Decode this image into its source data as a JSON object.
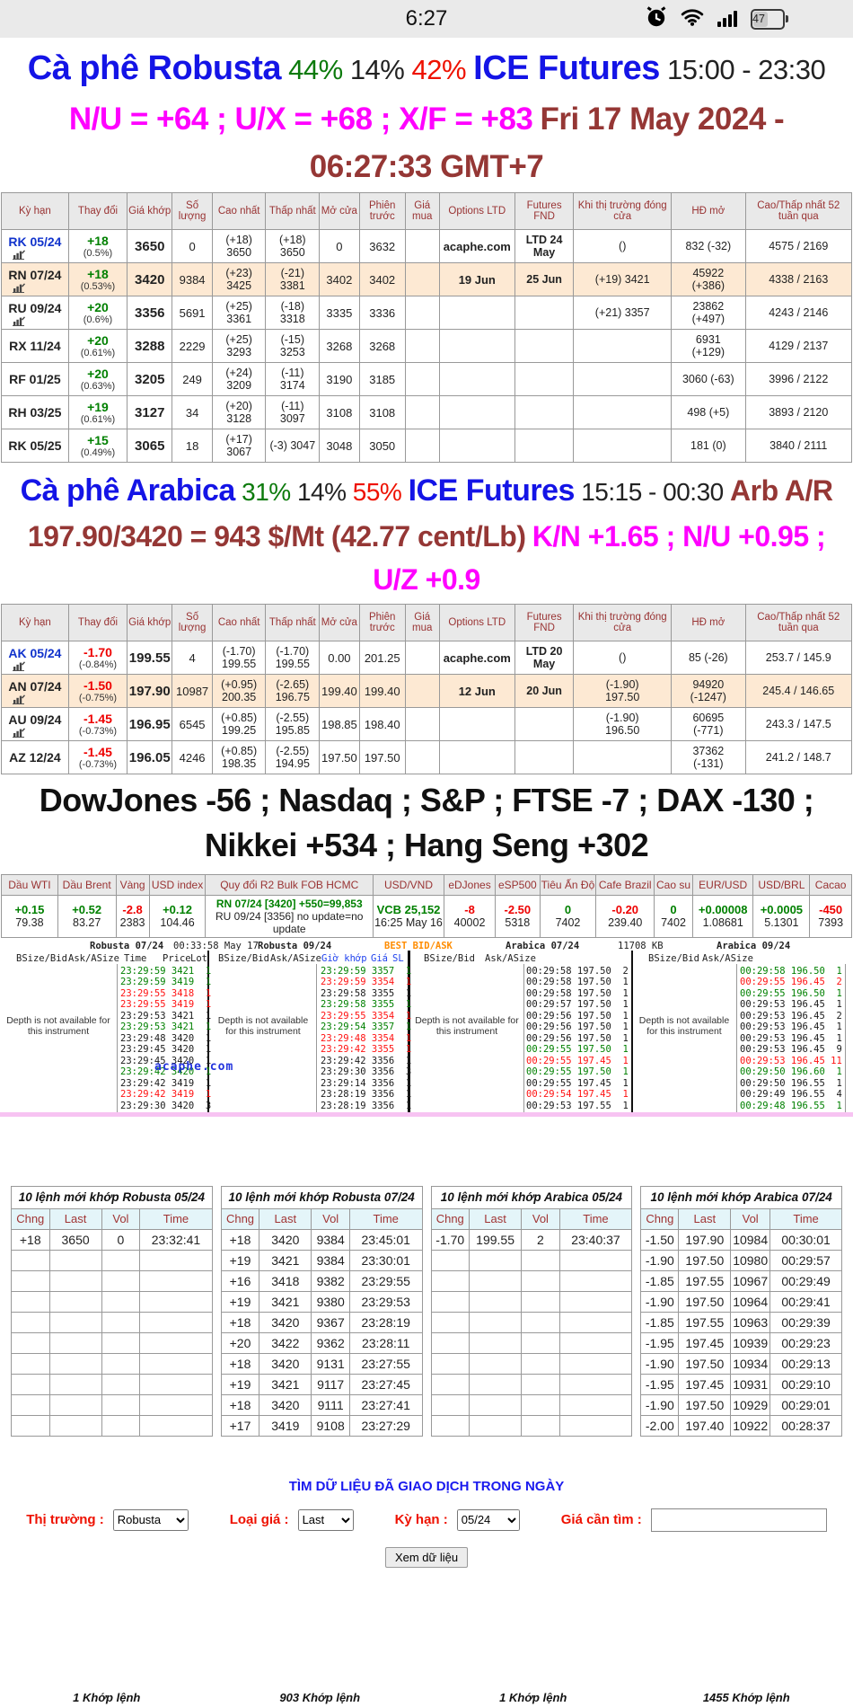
{
  "status_bar": {
    "time": "6:27",
    "battery_percent": "47"
  },
  "robusta_header": {
    "title": "Cà phê Robusta",
    "pct_green": "44%",
    "pct_black": "14%",
    "pct_red": "42%",
    "exchange": "ICE Futures",
    "hours": "15:00 - 23:30",
    "spreads": "N/U = +64 ; U/X = +68 ; X/F = +83",
    "date": "Fri 17 May 2024 - 06:27:33 GMT+7"
  },
  "arabica_header": {
    "title": "Cà phê Arabica",
    "pct_green": "31%",
    "pct_black": "14%",
    "pct_red": "55%",
    "exchange": "ICE Futures",
    "hours": "15:15 - 00:30",
    "arb": "Arb A/R 197.90/3420 = 943 $/Mt (42.77 cent/Lb)",
    "spreads": "K/N +1.65 ; N/U +0.95 ; U/Z +0.9"
  },
  "futures_headers": [
    "Kỳ hạn",
    "Thay đổi",
    "Giá khớp",
    "Số lượng",
    "Cao nhất",
    "Thấp nhất",
    "Mở cửa",
    "Phiên trước",
    "Giá mua",
    "Options LTD",
    "Futures FND",
    "Khi thị trường đóng cửa",
    "HĐ mở",
    "Cao/Thấp nhất 52 tuần qua"
  ],
  "robusta_rows": [
    {
      "sym": "RK 05/24",
      "blue": true,
      "icon": true,
      "chg": "+18",
      "pct": "(0.5%)",
      "last": "3650",
      "vol": "0",
      "high": "(+18)\n3650",
      "low": "(+18)\n3650",
      "open": "0",
      "prev": "3632",
      "buy": "",
      "opt": "acaphe.com",
      "fnd": "LTD 24 May",
      "close": "()",
      "oi": "832 (-32)",
      "yr": "4575 / 2169"
    },
    {
      "sym": "RN 07/24",
      "icon": true,
      "hl": true,
      "chg": "+18",
      "pct": "(0.53%)",
      "last": "3420",
      "vol": "9384",
      "high": "(+23)\n3425",
      "low": "(-21)\n3381",
      "open": "3402",
      "prev": "3402",
      "buy": "",
      "opt": "19 Jun",
      "fnd": "25 Jun",
      "close": "(+19) 3421",
      "oi": "45922\n(+386)",
      "yr": "4338 / 2163"
    },
    {
      "sym": "RU 09/24",
      "icon": true,
      "chg": "+20",
      "pct": "(0.6%)",
      "last": "3356",
      "vol": "5691",
      "high": "(+25)\n3361",
      "low": "(-18)\n3318",
      "open": "3335",
      "prev": "3336",
      "buy": "",
      "opt": "",
      "fnd": "",
      "close": "(+21) 3357",
      "oi": "23862\n(+497)",
      "yr": "4243 / 2146"
    },
    {
      "sym": "RX 11/24",
      "chg": "+20",
      "pct": "(0.61%)",
      "last": "3288",
      "vol": "2229",
      "high": "(+25)\n3293",
      "low": "(-15)\n3253",
      "open": "3268",
      "prev": "3268",
      "buy": "",
      "opt": "",
      "fnd": "",
      "close": "",
      "oi": "6931\n(+129)",
      "yr": "4129 / 2137"
    },
    {
      "sym": "RF 01/25",
      "chg": "+20",
      "pct": "(0.63%)",
      "last": "3205",
      "vol": "249",
      "high": "(+24)\n3209",
      "low": "(-11)\n3174",
      "open": "3190",
      "prev": "3185",
      "buy": "",
      "opt": "",
      "fnd": "",
      "close": "",
      "oi": "3060 (-63)",
      "yr": "3996 / 2122"
    },
    {
      "sym": "RH 03/25",
      "chg": "+19",
      "pct": "(0.61%)",
      "last": "3127",
      "vol": "34",
      "high": "(+20)\n3128",
      "low": "(-11)\n3097",
      "open": "3108",
      "prev": "3108",
      "buy": "",
      "opt": "",
      "fnd": "",
      "close": "",
      "oi": "498 (+5)",
      "yr": "3893 / 2120"
    },
    {
      "sym": "RK 05/25",
      "chg": "+15",
      "pct": "(0.49%)",
      "last": "3065",
      "vol": "18",
      "high": "(+17)\n3067",
      "low": "(-3) 3047",
      "open": "3048",
      "prev": "3050",
      "buy": "",
      "opt": "",
      "fnd": "",
      "close": "",
      "oi": "181 (0)",
      "yr": "3840 / 2111"
    }
  ],
  "arabica_rows": [
    {
      "sym": "AK 05/24",
      "blue": true,
      "icon": true,
      "chg": "-1.70",
      "pct": "(-0.84%)",
      "last": "199.55",
      "vol": "4",
      "high": "(-1.70)\n199.55",
      "low": "(-1.70)\n199.55",
      "open": "0.00",
      "prev": "201.25",
      "buy": "",
      "opt": "acaphe.com",
      "fnd": "LTD 20 May",
      "close": "()",
      "oi": "85 (-26)",
      "yr": "253.7 / 145.9"
    },
    {
      "sym": "AN 07/24",
      "icon": true,
      "hl": true,
      "chg": "-1.50",
      "pct": "(-0.75%)",
      "last": "197.90",
      "vol": "10987",
      "high": "(+0.95)\n200.35",
      "low": "(-2.65)\n196.75",
      "open": "199.40",
      "prev": "199.40",
      "buy": "",
      "opt": "12 Jun",
      "fnd": "20 Jun",
      "close": "(-1.90)\n197.50",
      "oi": "94920\n(-1247)",
      "yr": "245.4 / 146.65"
    },
    {
      "sym": "AU 09/24",
      "icon": true,
      "chg": "-1.45",
      "pct": "(-0.73%)",
      "last": "196.95",
      "vol": "6545",
      "high": "(+0.85)\n199.25",
      "low": "(-2.55)\n195.85",
      "open": "198.85",
      "prev": "198.40",
      "buy": "",
      "opt": "",
      "fnd": "",
      "close": "(-1.90)\n196.50",
      "oi": "60695\n(-771)",
      "yr": "243.3 / 147.5"
    },
    {
      "sym": "AZ 12/24",
      "chg": "-1.45",
      "pct": "(-0.73%)",
      "last": "196.05",
      "vol": "4246",
      "high": "(+0.85)\n198.35",
      "low": "(-2.55)\n194.95",
      "open": "197.50",
      "prev": "197.50",
      "buy": "",
      "opt": "",
      "fnd": "",
      "close": "",
      "oi": "37362\n(-131)",
      "yr": "241.2 / 148.7"
    }
  ],
  "indices_headline": "DowJones -56 ; Nasdaq ; S&P ; FTSE -7 ; DAX -130 ; Nikkei +534 ; Hang Seng +302",
  "strip_columns": [
    {
      "h": "Dầu WTI",
      "v1": "+0.15",
      "c": "g",
      "v2": "79.38"
    },
    {
      "h": "Dầu Brent",
      "v1": "+0.52",
      "c": "g",
      "v2": "83.27"
    },
    {
      "h": "Vàng",
      "v1": "-2.8",
      "c": "r",
      "v2": "2383"
    },
    {
      "h": "USD index",
      "v1": "+0.12",
      "c": "g",
      "v2": "104.46"
    },
    {
      "h": "Quy đổi R2 Bulk FOB HCMC",
      "v1": "RN 07/24 [3420] +550=99,853",
      "c": "g",
      "v2": "RU 09/24 [3356] no update=no update",
      "small": true
    },
    {
      "h": "USD/VND",
      "v1": "VCB 25,152",
      "c": "g",
      "v2": "16:25 May 16"
    },
    {
      "h": "eDJones",
      "v1": "-8",
      "c": "r",
      "v2": "40002"
    },
    {
      "h": "eSP500",
      "v1": "-2.50",
      "c": "r",
      "v2": "5318"
    },
    {
      "h": "Tiêu Ấn Độ",
      "v1": "0",
      "c": "g",
      "v2": "7402"
    },
    {
      "h": "Cafe Brazil",
      "v1": "-0.20",
      "c": "r",
      "v2": "239.40"
    },
    {
      "h": "Cao su",
      "v1": "0",
      "c": "g",
      "v2": "7402"
    },
    {
      "h": "EUR/USD",
      "v1": "+0.00008",
      "c": "g",
      "v2": "1.08681"
    },
    {
      "h": "USD/BRL",
      "v1": "+0.0005",
      "c": "g",
      "v2": "5.1301"
    },
    {
      "h": "Cacao",
      "v1": "-450",
      "c": "r",
      "v2": "7393"
    }
  ],
  "depth": {
    "titles": [
      "Robusta 07/24",
      "00:33:58 May 17",
      "Robusta 09/24",
      "BEST BID/ASK",
      "Arabica 07/24",
      "11708 KB",
      "Arabica 09/24"
    ],
    "labels": [
      "BSize/Bid",
      "Ask/ASize",
      "Time",
      "Price",
      "Lot",
      "BSize/Bid",
      "Ask/ASize",
      "Giờ khớp",
      "Giá",
      "SL",
      "BSize/Bid",
      "Ask/ASize",
      "BSize/Bid",
      "Ask/ASize"
    ],
    "na_text": "Depth is not available for this instrument",
    "watermark": "acaphe.com",
    "panels": [
      {
        "rows": [
          [
            "23:29:59",
            "3421",
            "1",
            "g"
          ],
          [
            "23:29:59",
            "3419",
            "1",
            "g"
          ],
          [
            "23:29:55",
            "3418",
            "1",
            "r"
          ],
          [
            "23:29:55",
            "3419",
            "1",
            "r"
          ],
          [
            "23:29:53",
            "3421",
            "1",
            "k"
          ],
          [
            "23:29:53",
            "3421",
            "1",
            "g"
          ],
          [
            "23:29:48",
            "3420",
            "1",
            "k"
          ],
          [
            "23:29:45",
            "3420",
            "1",
            "k"
          ],
          [
            "23:29:45",
            "3420",
            "1",
            "k"
          ],
          [
            "23:29:42",
            "3420",
            "1",
            "g"
          ],
          [
            "23:29:42",
            "3419",
            "1",
            "k"
          ],
          [
            "23:29:42",
            "3419",
            "1",
            "r"
          ],
          [
            "23:29:30",
            "3420",
            "3",
            "k"
          ]
        ]
      },
      {
        "rows": [
          [
            "23:29:59",
            "3357",
            "1",
            "g"
          ],
          [
            "23:29:59",
            "3354",
            "1",
            "r"
          ],
          [
            "23:29:58",
            "3355",
            "1",
            "k"
          ],
          [
            "23:29:58",
            "3355",
            "1",
            "g"
          ],
          [
            "23:29:55",
            "3354",
            "1",
            "r"
          ],
          [
            "23:29:54",
            "3357",
            "1",
            "g"
          ],
          [
            "23:29:48",
            "3354",
            "1",
            "r"
          ],
          [
            "23:29:42",
            "3355",
            "1",
            "r"
          ],
          [
            "23:29:42",
            "3356",
            "1",
            "k"
          ],
          [
            "23:29:30",
            "3356",
            "3",
            "k"
          ],
          [
            "23:29:14",
            "3356",
            "1",
            "k"
          ],
          [
            "23:28:19",
            "3356",
            "1",
            "k"
          ],
          [
            "23:28:19",
            "3356",
            "1",
            "k"
          ]
        ]
      },
      {
        "rows": [
          [
            "00:29:58",
            "197.50",
            "2",
            "k"
          ],
          [
            "00:29:58",
            "197.50",
            "1",
            "k"
          ],
          [
            "00:29:58",
            "197.50",
            "1",
            "k"
          ],
          [
            "00:29:57",
            "197.50",
            "1",
            "k"
          ],
          [
            "00:29:56",
            "197.50",
            "1",
            "k"
          ],
          [
            "00:29:56",
            "197.50",
            "1",
            "k"
          ],
          [
            "00:29:56",
            "197.50",
            "1",
            "k"
          ],
          [
            "00:29:55",
            "197.50",
            "1",
            "g"
          ],
          [
            "00:29:55",
            "197.45",
            "1",
            "r"
          ],
          [
            "00:29:55",
            "197.50",
            "1",
            "g"
          ],
          [
            "00:29:55",
            "197.45",
            "1",
            "k"
          ],
          [
            "00:29:54",
            "197.45",
            "1",
            "r"
          ],
          [
            "00:29:53",
            "197.55",
            "1",
            "k"
          ]
        ]
      },
      {
        "rows": [
          [
            "00:29:58",
            "196.50",
            "1",
            "g"
          ],
          [
            "00:29:55",
            "196.45",
            "2",
            "r"
          ],
          [
            "00:29:55",
            "196.50",
            "1",
            "g"
          ],
          [
            "00:29:53",
            "196.45",
            "1",
            "k"
          ],
          [
            "00:29:53",
            "196.45",
            "2",
            "k"
          ],
          [
            "00:29:53",
            "196.45",
            "1",
            "k"
          ],
          [
            "00:29:53",
            "196.45",
            "1",
            "k"
          ],
          [
            "00:29:53",
            "196.45",
            "9",
            "k"
          ],
          [
            "00:29:53",
            "196.45",
            "11",
            "r"
          ],
          [
            "00:29:50",
            "196.60",
            "1",
            "g"
          ],
          [
            "00:29:50",
            "196.55",
            "1",
            "k"
          ],
          [
            "00:29:49",
            "196.55",
            "4",
            "k"
          ],
          [
            "00:29:48",
            "196.55",
            "1",
            "g"
          ]
        ]
      }
    ]
  },
  "matched_headers": [
    "Chng",
    "Last",
    "Vol",
    "Time"
  ],
  "matched_tables": [
    {
      "title": "10 lệnh mới khớp Robusta 05/24",
      "rows": [
        [
          "+18",
          "3650",
          "0",
          "23:32:41"
        ]
      ]
    },
    {
      "title": "10 lệnh mới khớp Robusta 07/24",
      "rows": [
        [
          "+18",
          "3420",
          "9384",
          "23:45:01"
        ],
        [
          "+19",
          "3421",
          "9384",
          "23:30:01"
        ],
        [
          "+16",
          "3418",
          "9382",
          "23:29:55"
        ],
        [
          "+19",
          "3421",
          "9380",
          "23:29:53"
        ],
        [
          "+18",
          "3420",
          "9367",
          "23:28:19"
        ],
        [
          "+20",
          "3422",
          "9362",
          "23:28:11"
        ],
        [
          "+18",
          "3420",
          "9131",
          "23:27:55"
        ],
        [
          "+19",
          "3421",
          "9117",
          "23:27:45"
        ],
        [
          "+18",
          "3420",
          "9111",
          "23:27:41"
        ],
        [
          "+17",
          "3419",
          "9108",
          "23:27:29"
        ]
      ]
    },
    {
      "title": "10 lệnh mới khớp Arabica 05/24",
      "rows": [
        [
          "-1.70",
          "199.55",
          "2",
          "23:40:37"
        ]
      ]
    },
    {
      "title": "10 lệnh mới khớp Arabica 07/24",
      "rows": [
        [
          "-1.50",
          "197.90",
          "10984",
          "00:30:01"
        ],
        [
          "-1.90",
          "197.50",
          "10980",
          "00:29:57"
        ],
        [
          "-1.85",
          "197.55",
          "10967",
          "00:29:49"
        ],
        [
          "-1.90",
          "197.50",
          "10964",
          "00:29:41"
        ],
        [
          "-1.85",
          "197.55",
          "10963",
          "00:29:39"
        ],
        [
          "-1.95",
          "197.45",
          "10939",
          "00:29:23"
        ],
        [
          "-1.90",
          "197.50",
          "10934",
          "00:29:13"
        ],
        [
          "-1.95",
          "197.45",
          "10931",
          "00:29:10"
        ],
        [
          "-1.90",
          "197.50",
          "10929",
          "00:29:01"
        ],
        [
          "-2.00",
          "197.40",
          "10922",
          "00:28:37"
        ]
      ]
    }
  ],
  "search_form": {
    "title": "TÌM DỮ LIỆU ĐÃ GIAO DỊCH TRONG NGÀY",
    "market_label": "Thị trường :",
    "market_value": "Robusta",
    "price_label": "Loại giá :",
    "price_value": "Last",
    "term_label": "Kỳ hạn :",
    "term_value": "05/24",
    "find_label": "Giá cần tìm :",
    "find_value": "",
    "button": "Xem dữ liệu"
  },
  "footer_counts": [
    "1 Khớp lệnh",
    "903 Khớp lệnh",
    "1 Khớp lệnh",
    "1455 Khớp lệnh"
  ]
}
